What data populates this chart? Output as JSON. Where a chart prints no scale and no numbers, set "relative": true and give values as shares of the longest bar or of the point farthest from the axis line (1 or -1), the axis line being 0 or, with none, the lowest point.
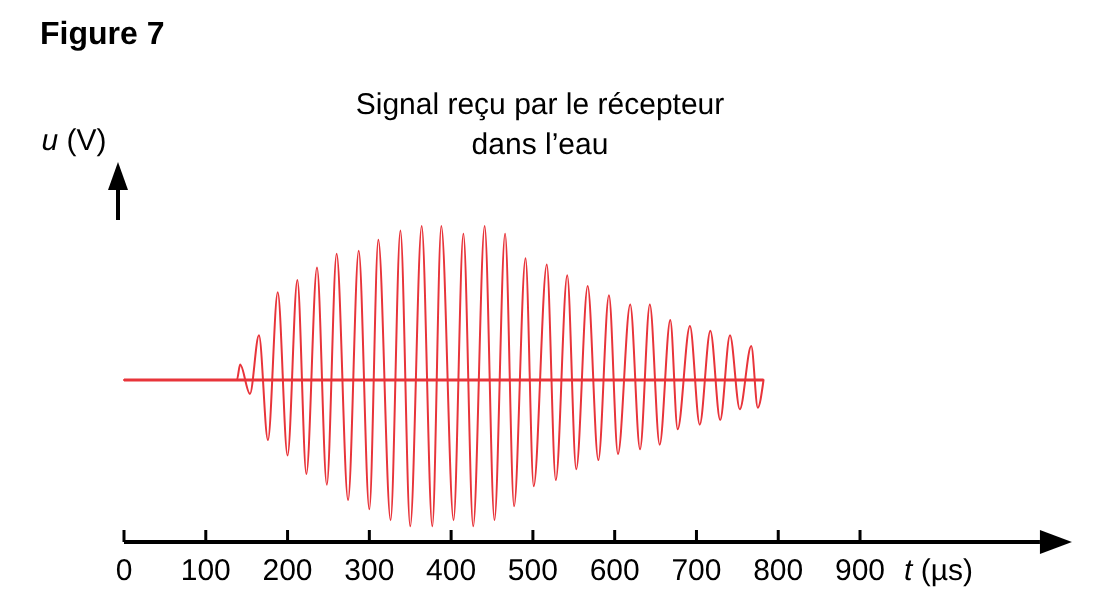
{
  "chart_data": {
    "type": "line",
    "title": "Figure 7",
    "subtitle": "Signal reçu par le récepteur\ndans l’eau",
    "xlabel": "t (µs)",
    "ylabel": "u (V)",
    "relative": true,
    "xlim": [
      0,
      1120
    ],
    "xticks": [
      0,
      100,
      200,
      300,
      400,
      500,
      600,
      700,
      800,
      900
    ],
    "ref_lines": [
      {
        "axis": "y",
        "value": 0,
        "color": "#e8343a"
      }
    ],
    "series": [
      {
        "color": "#e8343a",
        "x": [
          0,
          138,
          142,
          154,
          165,
          176,
          188,
          200,
          212,
          223,
          236,
          248,
          260,
          274,
          287,
          300,
          311,
          326,
          338,
          350,
          364,
          377,
          388,
          403,
          415,
          427,
          441,
          453,
          466,
          477,
          491,
          501,
          517,
          528,
          542,
          553,
          567,
          580,
          593,
          604,
          619,
          631,
          643,
          655,
          668,
          677,
          692,
          704,
          717,
          729,
          741,
          753,
          767,
          775,
          782
        ],
        "values": [
          0,
          0,
          0.1,
          -0.09,
          0.29,
          -0.39,
          0.57,
          -0.49,
          0.65,
          -0.61,
          0.73,
          -0.68,
          0.82,
          -0.78,
          0.84,
          -0.84,
          0.91,
          -0.91,
          0.97,
          -0.95,
          1,
          -0.95,
          1,
          -0.91,
          0.95,
          -0.95,
          1,
          -0.91,
          0.95,
          -0.82,
          0.79,
          -0.69,
          0.75,
          -0.65,
          0.68,
          -0.58,
          0.61,
          -0.52,
          0.55,
          -0.48,
          0.49,
          -0.45,
          0.49,
          -0.42,
          0.39,
          -0.32,
          0.35,
          -0.29,
          0.32,
          -0.26,
          0.29,
          -0.19,
          0.22,
          -0.18,
          0
        ]
      }
    ]
  }
}
